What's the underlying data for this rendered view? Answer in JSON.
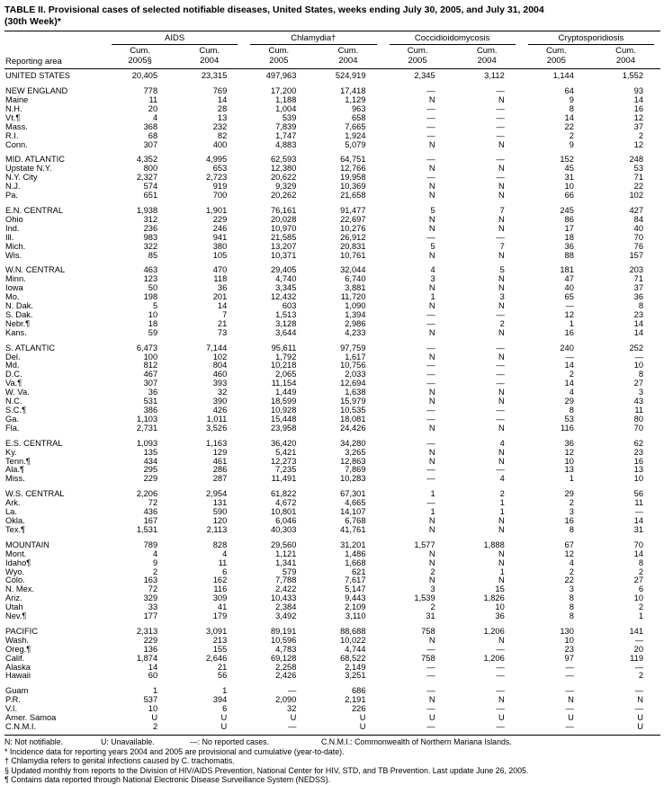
{
  "title": "TABLE II. Provisional cases of selected notifiable diseases, United States, weeks ending July 30, 2005, and July 31, 2004",
  "subtitle": "(30th Week)*",
  "table": {
    "reporting_area_header": "Reporting area",
    "groups": [
      {
        "label": "AIDS",
        "sub": [
          "Cum.\n2005§",
          "Cum.\n2004"
        ]
      },
      {
        "label": "Chlamydia†",
        "sub": [
          "Cum.\n2005",
          "Cum.\n2004"
        ]
      },
      {
        "label": "Coccidioidomycosis",
        "sub": [
          "Cum.\n2005",
          "Cum.\n2004"
        ]
      },
      {
        "label": "Cryptosporidiosis",
        "sub": [
          "Cum.\n2005",
          "Cum.\n2004"
        ]
      }
    ],
    "sections": [
      {
        "rows": [
          {
            "area": "UNITED STATES",
            "v": [
              "20,405",
              "23,315",
              "497,963",
              "524,919",
              "2,345",
              "3,112",
              "1,144",
              "1,552"
            ]
          }
        ]
      },
      {
        "rows": [
          {
            "area": "NEW ENGLAND",
            "v": [
              "778",
              "769",
              "17,200",
              "17,418",
              "—",
              "—",
              "64",
              "93"
            ]
          },
          {
            "area": "Maine",
            "v": [
              "11",
              "14",
              "1,188",
              "1,129",
              "N",
              "N",
              "9",
              "14"
            ]
          },
          {
            "area": "N.H.",
            "v": [
              "20",
              "28",
              "1,004",
              "963",
              "—",
              "—",
              "8",
              "16"
            ]
          },
          {
            "area": "Vt.¶",
            "v": [
              "4",
              "13",
              "539",
              "658",
              "—",
              "—",
              "14",
              "12"
            ]
          },
          {
            "area": "Mass.",
            "v": [
              "368",
              "232",
              "7,839",
              "7,665",
              "—",
              "—",
              "22",
              "37"
            ]
          },
          {
            "area": "R.I.",
            "v": [
              "68",
              "82",
              "1,747",
              "1,924",
              "—",
              "—",
              "2",
              "2"
            ]
          },
          {
            "area": "Conn.",
            "v": [
              "307",
              "400",
              "4,883",
              "5,079",
              "N",
              "N",
              "9",
              "12"
            ]
          }
        ]
      },
      {
        "rows": [
          {
            "area": "MID. ATLANTIC",
            "v": [
              "4,352",
              "4,995",
              "62,593",
              "64,751",
              "—",
              "—",
              "152",
              "248"
            ]
          },
          {
            "area": "Upstate N.Y.",
            "v": [
              "800",
              "653",
              "12,380",
              "12,766",
              "N",
              "N",
              "45",
              "53"
            ]
          },
          {
            "area": "N.Y. City",
            "v": [
              "2,327",
              "2,723",
              "20,622",
              "19,958",
              "—",
              "—",
              "31",
              "71"
            ]
          },
          {
            "area": "N.J.",
            "v": [
              "574",
              "919",
              "9,329",
              "10,369",
              "N",
              "N",
              "10",
              "22"
            ]
          },
          {
            "area": "Pa.",
            "v": [
              "651",
              "700",
              "20,262",
              "21,658",
              "N",
              "N",
              "66",
              "102"
            ]
          }
        ]
      },
      {
        "rows": [
          {
            "area": "E.N. CENTRAL",
            "v": [
              "1,938",
              "1,901",
              "76,161",
              "91,477",
              "5",
              "7",
              "245",
              "427"
            ]
          },
          {
            "area": "Ohio",
            "v": [
              "312",
              "229",
              "20,028",
              "22,697",
              "N",
              "N",
              "86",
              "84"
            ]
          },
          {
            "area": "Ind.",
            "v": [
              "236",
              "246",
              "10,970",
              "10,276",
              "N",
              "N",
              "17",
              "40"
            ]
          },
          {
            "area": "Ill.",
            "v": [
              "983",
              "941",
              "21,585",
              "26,912",
              "—",
              "—",
              "18",
              "70"
            ]
          },
          {
            "area": "Mich.",
            "v": [
              "322",
              "380",
              "13,207",
              "20,831",
              "5",
              "7",
              "36",
              "76"
            ]
          },
          {
            "area": "Wis.",
            "v": [
              "85",
              "105",
              "10,371",
              "10,761",
              "N",
              "N",
              "88",
              "157"
            ]
          }
        ]
      },
      {
        "rows": [
          {
            "area": "W.N. CENTRAL",
            "v": [
              "463",
              "470",
              "29,405",
              "32,044",
              "4",
              "5",
              "181",
              "203"
            ]
          },
          {
            "area": "Minn.",
            "v": [
              "123",
              "118",
              "4,740",
              "6,740",
              "3",
              "N",
              "47",
              "71"
            ]
          },
          {
            "area": "Iowa",
            "v": [
              "50",
              "36",
              "3,345",
              "3,881",
              "N",
              "N",
              "40",
              "37"
            ]
          },
          {
            "area": "Mo.",
            "v": [
              "198",
              "201",
              "12,432",
              "11,720",
              "1",
              "3",
              "65",
              "36"
            ]
          },
          {
            "area": "N. Dak.",
            "v": [
              "5",
              "14",
              "603",
              "1,090",
              "N",
              "N",
              "—",
              "8"
            ]
          },
          {
            "area": "S. Dak.",
            "v": [
              "10",
              "7",
              "1,513",
              "1,394",
              "—",
              "—",
              "12",
              "23"
            ]
          },
          {
            "area": "Nebr.¶",
            "v": [
              "18",
              "21",
              "3,128",
              "2,986",
              "—",
              "2",
              "1",
              "14"
            ]
          },
          {
            "area": "Kans.",
            "v": [
              "59",
              "73",
              "3,644",
              "4,233",
              "N",
              "N",
              "16",
              "14"
            ]
          }
        ]
      },
      {
        "rows": [
          {
            "area": "S. ATLANTIC",
            "v": [
              "6,473",
              "7,144",
              "95,611",
              "97,759",
              "—",
              "—",
              "240",
              "252"
            ]
          },
          {
            "area": "Del.",
            "v": [
              "100",
              "102",
              "1,792",
              "1,617",
              "N",
              "N",
              "—",
              "—"
            ]
          },
          {
            "area": "Md.",
            "v": [
              "812",
              "804",
              "10,218",
              "10,756",
              "—",
              "—",
              "14",
              "10"
            ]
          },
          {
            "area": "D.C.",
            "v": [
              "467",
              "460",
              "2,065",
              "2,033",
              "—",
              "—",
              "2",
              "8"
            ]
          },
          {
            "area": "Va.¶",
            "v": [
              "307",
              "393",
              "11,154",
              "12,694",
              "—",
              "—",
              "14",
              "27"
            ]
          },
          {
            "area": "W. Va.",
            "v": [
              "36",
              "32",
              "1,449",
              "1,638",
              "N",
              "N",
              "4",
              "3"
            ]
          },
          {
            "area": "N.C.",
            "v": [
              "531",
              "390",
              "18,599",
              "15,979",
              "N",
              "N",
              "29",
              "43"
            ]
          },
          {
            "area": "S.C.¶",
            "v": [
              "386",
              "426",
              "10,928",
              "10,535",
              "—",
              "—",
              "8",
              "11"
            ]
          },
          {
            "area": "Ga.",
            "v": [
              "1,103",
              "1,011",
              "15,448",
              "18,081",
              "—",
              "—",
              "53",
              "80"
            ]
          },
          {
            "area": "Fla.",
            "v": [
              "2,731",
              "3,526",
              "23,958",
              "24,426",
              "N",
              "N",
              "116",
              "70"
            ]
          }
        ]
      },
      {
        "rows": [
          {
            "area": "E.S. CENTRAL",
            "v": [
              "1,093",
              "1,163",
              "36,420",
              "34,280",
              "—",
              "4",
              "36",
              "62"
            ]
          },
          {
            "area": "Ky.",
            "v": [
              "135",
              "129",
              "5,421",
              "3,265",
              "N",
              "N",
              "12",
              "23"
            ]
          },
          {
            "area": "Tenn.¶",
            "v": [
              "434",
              "461",
              "12,273",
              "12,863",
              "N",
              "N",
              "10",
              "16"
            ]
          },
          {
            "area": "Ala.¶",
            "v": [
              "295",
              "286",
              "7,235",
              "7,869",
              "—",
              "—",
              "13",
              "13"
            ]
          },
          {
            "area": "Miss.",
            "v": [
              "229",
              "287",
              "11,491",
              "10,283",
              "—",
              "4",
              "1",
              "10"
            ]
          }
        ]
      },
      {
        "rows": [
          {
            "area": "W.S. CENTRAL",
            "v": [
              "2,206",
              "2,954",
              "61,822",
              "67,301",
              "1",
              "2",
              "29",
              "56"
            ]
          },
          {
            "area": "Ark.",
            "v": [
              "72",
              "131",
              "4,672",
              "4,665",
              "—",
              "1",
              "2",
              "11"
            ]
          },
          {
            "area": "La.",
            "v": [
              "436",
              "590",
              "10,801",
              "14,107",
              "1",
              "1",
              "3",
              "—"
            ]
          },
          {
            "area": "Okla.",
            "v": [
              "167",
              "120",
              "6,046",
              "6,768",
              "N",
              "N",
              "16",
              "14"
            ]
          },
          {
            "area": "Tex.¶",
            "v": [
              "1,531",
              "2,113",
              "40,303",
              "41,761",
              "N",
              "N",
              "8",
              "31"
            ]
          }
        ]
      },
      {
        "rows": [
          {
            "area": "MOUNTAIN",
            "v": [
              "789",
              "828",
              "29,560",
              "31,201",
              "1,577",
              "1,888",
              "67",
              "70"
            ]
          },
          {
            "area": "Mont.",
            "v": [
              "4",
              "4",
              "1,121",
              "1,486",
              "N",
              "N",
              "12",
              "14"
            ]
          },
          {
            "area": "Idaho¶",
            "v": [
              "9",
              "11",
              "1,341",
              "1,668",
              "N",
              "N",
              "4",
              "8"
            ]
          },
          {
            "area": "Wyo.",
            "v": [
              "2",
              "6",
              "579",
              "621",
              "2",
              "1",
              "2",
              "2"
            ]
          },
          {
            "area": "Colo.",
            "v": [
              "163",
              "162",
              "7,788",
              "7,617",
              "N",
              "N",
              "22",
              "27"
            ]
          },
          {
            "area": "N. Mex.",
            "v": [
              "72",
              "116",
              "2,422",
              "5,147",
              "3",
              "15",
              "3",
              "6"
            ]
          },
          {
            "area": "Ariz.",
            "v": [
              "329",
              "309",
              "10,433",
              "9,443",
              "1,539",
              "1,826",
              "8",
              "10"
            ]
          },
          {
            "area": "Utah",
            "v": [
              "33",
              "41",
              "2,384",
              "2,109",
              "2",
              "10",
              "8",
              "2"
            ]
          },
          {
            "area": "Nev.¶",
            "v": [
              "177",
              "179",
              "3,492",
              "3,110",
              "31",
              "36",
              "8",
              "1"
            ]
          }
        ]
      },
      {
        "rows": [
          {
            "area": "PACIFIC",
            "v": [
              "2,313",
              "3,091",
              "89,191",
              "88,688",
              "758",
              "1,206",
              "130",
              "141"
            ]
          },
          {
            "area": "Wash.",
            "v": [
              "229",
              "213",
              "10,596",
              "10,022",
              "N",
              "N",
              "10",
              "—"
            ]
          },
          {
            "area": "Oreg.¶",
            "v": [
              "136",
              "155",
              "4,783",
              "4,744",
              "—",
              "—",
              "23",
              "20"
            ]
          },
          {
            "area": "Calif.",
            "v": [
              "1,874",
              "2,646",
              "69,128",
              "68,522",
              "758",
              "1,206",
              "97",
              "119"
            ]
          },
          {
            "area": "Alaska",
            "v": [
              "14",
              "21",
              "2,258",
              "2,149",
              "—",
              "—",
              "—",
              "—"
            ]
          },
          {
            "area": "Hawaii",
            "v": [
              "60",
              "56",
              "2,426",
              "3,251",
              "—",
              "—",
              "—",
              "2"
            ]
          }
        ]
      },
      {
        "rows": [
          {
            "area": "Guam",
            "v": [
              "1",
              "1",
              "—",
              "686",
              "—",
              "—",
              "—",
              "—"
            ]
          },
          {
            "area": "P.R.",
            "v": [
              "537",
              "394",
              "2,090",
              "2,191",
              "N",
              "N",
              "N",
              "N"
            ]
          },
          {
            "area": "V.I.",
            "v": [
              "10",
              "6",
              "32",
              "226",
              "—",
              "—",
              "—",
              "—"
            ]
          },
          {
            "area": "Amer. Samoa",
            "v": [
              "U",
              "U",
              "U",
              "U",
              "U",
              "U",
              "U",
              "U"
            ]
          },
          {
            "area": "C.N.M.I.",
            "v": [
              "2",
              "U",
              "—",
              "U",
              "—",
              "—",
              "—",
              "U"
            ]
          }
        ]
      }
    ]
  },
  "legend": [
    "N: Not notifiable.",
    "U: Unavailable.",
    "—: No reported cases.",
    "C.N.M.I.: Commonwealth of Northern Mariana Islands."
  ],
  "footnotes": [
    "* Incidence data for reporting years 2004 and 2005 are provisional and cumulative (year-to-date).",
    "† Chlamydia refers to genital infections caused by C. trachomatis.",
    "§ Updated monthly from reports to the Division of HIV/AIDS Prevention, National Center for HIV, STD, and TB Prevention. Last update June 26, 2005.",
    "¶ Contains data reported through National Electronic Disease Surveillance System (NEDSS)."
  ]
}
